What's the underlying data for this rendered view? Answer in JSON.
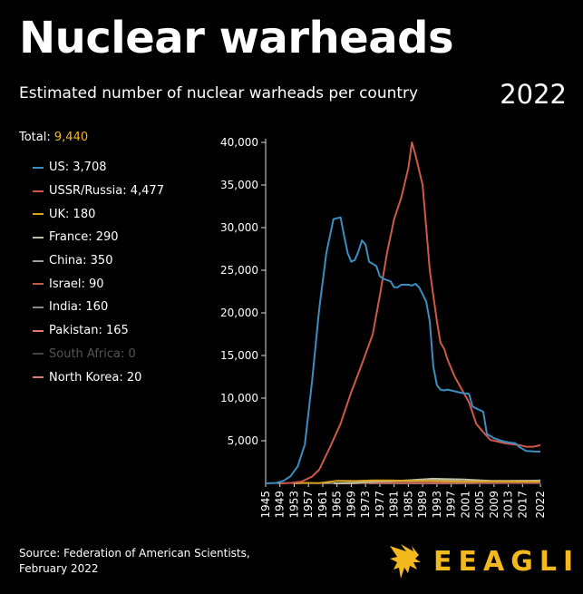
{
  "header": {
    "title": "Nuclear warheads",
    "subtitle": "Estimated number of nuclear warheads per country",
    "year": "2022"
  },
  "total": {
    "label": "Total:",
    "value": "9,440"
  },
  "legend": [
    {
      "label": "US: 3,708",
      "color": "#3a8fc2",
      "dim": false
    },
    {
      "label": "USSR/Russia: 4,477",
      "color": "#d0584a",
      "dim": false
    },
    {
      "label": "UK: 180",
      "color": "#d9a521",
      "dim": false
    },
    {
      "label": "France: 290",
      "color": "#bdbd9e",
      "dim": false
    },
    {
      "label": "China: 350",
      "color": "#9e9e9e",
      "dim": false
    },
    {
      "label": "Israel: 90",
      "color": "#c05a4c",
      "dim": false
    },
    {
      "label": "India: 160",
      "color": "#8a8a8a",
      "dim": false
    },
    {
      "label": "Pakistan: 165",
      "color": "#e8766a",
      "dim": false
    },
    {
      "label": "South Africa: 0",
      "color": "#444444",
      "dim": true
    },
    {
      "label": "North Korea: 20",
      "color": "#e07a6e",
      "dim": false
    }
  ],
  "source": {
    "line1": "Source: Federation of American Scientists,",
    "line2": "February 2022"
  },
  "brand": {
    "name": "EEAGLI",
    "color": "#f2b81c",
    "icon": "eagle-icon"
  },
  "chart_data": {
    "type": "line",
    "ylim": [
      0,
      40000
    ],
    "y_ticks": [
      "5,000",
      "10,000",
      "15,000",
      "20,000",
      "25,000",
      "30,000",
      "35,000",
      "40,000"
    ],
    "y_tick_values": [
      5000,
      10000,
      15000,
      20000,
      25000,
      30000,
      35000,
      40000
    ],
    "xlim": [
      1945,
      2022
    ],
    "x_ticks": [
      "1945",
      "1949",
      "1953",
      "1957",
      "1961",
      "1965",
      "1969",
      "1973",
      "1977",
      "1981",
      "1985",
      "1989",
      "1993",
      "1997",
      "2001",
      "2005",
      "2009",
      "2013",
      "2017",
      "2022"
    ],
    "x_tick_values": [
      1945,
      1949,
      1953,
      1957,
      1961,
      1965,
      1969,
      1973,
      1977,
      1981,
      1985,
      1989,
      1993,
      1997,
      2001,
      2005,
      2009,
      2013,
      2017,
      2022
    ],
    "series": [
      {
        "name": "US",
        "color": "#3a8fc2",
        "points": [
          [
            1945,
            2
          ],
          [
            1948,
            50
          ],
          [
            1950,
            300
          ],
          [
            1952,
            840
          ],
          [
            1954,
            2000
          ],
          [
            1956,
            4600
          ],
          [
            1958,
            12000
          ],
          [
            1960,
            20400
          ],
          [
            1962,
            27000
          ],
          [
            1964,
            31000
          ],
          [
            1966,
            31200
          ],
          [
            1967,
            29000
          ],
          [
            1968,
            27000
          ],
          [
            1969,
            26000
          ],
          [
            1970,
            26200
          ],
          [
            1971,
            27200
          ],
          [
            1972,
            28500
          ],
          [
            1973,
            28000
          ],
          [
            1974,
            26000
          ],
          [
            1976,
            25500
          ],
          [
            1977,
            24300
          ],
          [
            1978,
            24000
          ],
          [
            1980,
            23700
          ],
          [
            1981,
            23000
          ],
          [
            1982,
            23000
          ],
          [
            1983,
            23300
          ],
          [
            1985,
            23300
          ],
          [
            1986,
            23200
          ],
          [
            1987,
            23400
          ],
          [
            1988,
            23000
          ],
          [
            1989,
            22200
          ],
          [
            1990,
            21300
          ],
          [
            1991,
            19000
          ],
          [
            1992,
            13700
          ],
          [
            1993,
            11500
          ],
          [
            1994,
            11000
          ],
          [
            1995,
            10900
          ],
          [
            1996,
            11000
          ],
          [
            1998,
            10800
          ],
          [
            2000,
            10600
          ],
          [
            2002,
            10500
          ],
          [
            2003,
            9000
          ],
          [
            2004,
            8800
          ],
          [
            2006,
            8400
          ],
          [
            2007,
            5800
          ],
          [
            2009,
            5300
          ],
          [
            2011,
            5000
          ],
          [
            2013,
            4800
          ],
          [
            2015,
            4700
          ],
          [
            2016,
            4300
          ],
          [
            2018,
            3800
          ],
          [
            2020,
            3750
          ],
          [
            2022,
            3708
          ]
        ]
      },
      {
        "name": "USSR/Russia",
        "color": "#d0584a",
        "points": [
          [
            1949,
            1
          ],
          [
            1952,
            50
          ],
          [
            1955,
            200
          ],
          [
            1958,
            800
          ],
          [
            1960,
            1600
          ],
          [
            1963,
            4200
          ],
          [
            1966,
            7000
          ],
          [
            1969,
            10700
          ],
          [
            1972,
            14000
          ],
          [
            1975,
            17500
          ],
          [
            1977,
            22000
          ],
          [
            1979,
            27000
          ],
          [
            1981,
            31000
          ],
          [
            1983,
            33500
          ],
          [
            1985,
            37000
          ],
          [
            1986,
            40000
          ],
          [
            1987,
            38500
          ],
          [
            1989,
            35000
          ],
          [
            1990,
            30000
          ],
          [
            1991,
            25000
          ],
          [
            1993,
            19000
          ],
          [
            1994,
            16500
          ],
          [
            1995,
            15800
          ],
          [
            1996,
            14500
          ],
          [
            1998,
            12500
          ],
          [
            2000,
            11000
          ],
          [
            2002,
            9500
          ],
          [
            2004,
            7000
          ],
          [
            2006,
            6000
          ],
          [
            2008,
            5100
          ],
          [
            2010,
            4900
          ],
          [
            2012,
            4700
          ],
          [
            2014,
            4600
          ],
          [
            2016,
            4500
          ],
          [
            2018,
            4300
          ],
          [
            2020,
            4300
          ],
          [
            2022,
            4477
          ]
        ]
      },
      {
        "name": "UK",
        "color": "#d9a521",
        "points": [
          [
            1953,
            1
          ],
          [
            1956,
            50
          ],
          [
            1960,
            30
          ],
          [
            1965,
            300
          ],
          [
            1970,
            280
          ],
          [
            1975,
            350
          ],
          [
            1980,
            350
          ],
          [
            1985,
            300
          ],
          [
            1990,
            300
          ],
          [
            1995,
            234
          ],
          [
            2000,
            185
          ],
          [
            2010,
            225
          ],
          [
            2022,
            180
          ]
        ]
      },
      {
        "name": "France",
        "color": "#bdbd9e",
        "points": [
          [
            1964,
            4
          ],
          [
            1970,
            36
          ],
          [
            1975,
            188
          ],
          [
            1980,
            250
          ],
          [
            1985,
            360
          ],
          [
            1992,
            540
          ],
          [
            1995,
            500
          ],
          [
            2000,
            470
          ],
          [
            2008,
            300
          ],
          [
            2022,
            290
          ]
        ]
      },
      {
        "name": "China",
        "color": "#9e9e9e",
        "points": [
          [
            1964,
            1
          ],
          [
            1970,
            75
          ],
          [
            1975,
            185
          ],
          [
            1980,
            280
          ],
          [
            1985,
            280
          ],
          [
            1990,
            300
          ],
          [
            1995,
            400
          ],
          [
            2000,
            232
          ],
          [
            2010,
            240
          ],
          [
            2020,
            320
          ],
          [
            2022,
            350
          ]
        ]
      },
      {
        "name": "Israel",
        "color": "#c05a4c",
        "points": [
          [
            1967,
            13
          ],
          [
            1980,
            50
          ],
          [
            1990,
            60
          ],
          [
            2000,
            80
          ],
          [
            2022,
            90
          ]
        ]
      },
      {
        "name": "India",
        "color": "#8a8a8a",
        "points": [
          [
            1974,
            1
          ],
          [
            1990,
            10
          ],
          [
            2000,
            30
          ],
          [
            2010,
            90
          ],
          [
            2022,
            160
          ]
        ]
      },
      {
        "name": "Pakistan",
        "color": "#e8766a",
        "points": [
          [
            1986,
            1
          ],
          [
            1998,
            10
          ],
          [
            2005,
            50
          ],
          [
            2010,
            100
          ],
          [
            2022,
            165
          ]
        ]
      },
      {
        "name": "South Africa",
        "color": "#444444",
        "points": [
          [
            1980,
            1
          ],
          [
            1985,
            4
          ],
          [
            1990,
            6
          ],
          [
            1991,
            0
          ],
          [
            2022,
            0
          ]
        ]
      },
      {
        "name": "North Korea",
        "color": "#e07a6e",
        "points": [
          [
            2006,
            1
          ],
          [
            2012,
            5
          ],
          [
            2018,
            15
          ],
          [
            2022,
            20
          ]
        ]
      }
    ]
  }
}
